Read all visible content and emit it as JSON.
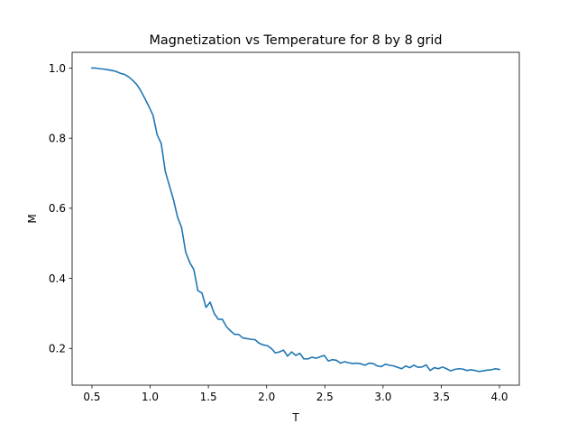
{
  "chart_data": {
    "type": "line",
    "title": "Magnetization vs Temperature for 8 by 8 grid",
    "xlabel": "T",
    "ylabel": "M",
    "xlim": [
      0.33,
      4.17
    ],
    "ylim": [
      0.095,
      1.045
    ],
    "grid": false,
    "xticks": [
      0.5,
      1.0,
      1.5,
      2.0,
      2.5,
      3.0,
      3.5,
      4.0
    ],
    "xtick_labels": [
      "0.5",
      "1.0",
      "1.5",
      "2.0",
      "2.5",
      "3.0",
      "3.5",
      "4.0"
    ],
    "yticks": [
      0.2,
      0.4,
      0.6,
      0.8,
      1.0
    ],
    "ytick_labels": [
      "0.2",
      "0.4",
      "0.6",
      "0.8",
      "1.0"
    ],
    "series": [
      {
        "color": "#1f77b4",
        "x": [
          0.5,
          0.535,
          0.57,
          0.605,
          0.64,
          0.675,
          0.71,
          0.745,
          0.78,
          0.815,
          0.85,
          0.885,
          0.92,
          0.955,
          0.99,
          1.025,
          1.06,
          1.095,
          1.13,
          1.165,
          1.2,
          1.235,
          1.27,
          1.305,
          1.34,
          1.375,
          1.41,
          1.445,
          1.48,
          1.515,
          1.55,
          1.585,
          1.62,
          1.655,
          1.69,
          1.725,
          1.76,
          1.795,
          1.83,
          1.865,
          1.9,
          1.935,
          1.97,
          2.005,
          2.04,
          2.075,
          2.11,
          2.145,
          2.18,
          2.215,
          2.25,
          2.285,
          2.32,
          2.355,
          2.39,
          2.425,
          2.46,
          2.495,
          2.53,
          2.565,
          2.6,
          2.635,
          2.67,
          2.705,
          2.74,
          2.775,
          2.81,
          2.845,
          2.88,
          2.915,
          2.95,
          2.985,
          3.02,
          3.055,
          3.09,
          3.125,
          3.16,
          3.195,
          3.23,
          3.265,
          3.3,
          3.335,
          3.37,
          3.405,
          3.44,
          3.475,
          3.51,
          3.545,
          3.58,
          3.615,
          3.65,
          3.685,
          3.72,
          3.755,
          3.79,
          3.825,
          3.86,
          3.895,
          3.93,
          3.965,
          4.0
        ],
        "y": [
          1.0,
          1.0,
          0.998,
          0.997,
          0.995,
          0.993,
          0.99,
          0.985,
          0.982,
          0.975,
          0.965,
          0.953,
          0.935,
          0.913,
          0.89,
          0.865,
          0.81,
          0.785,
          0.705,
          0.665,
          0.625,
          0.575,
          0.545,
          0.475,
          0.445,
          0.425,
          0.365,
          0.358,
          0.317,
          0.332,
          0.3,
          0.283,
          0.283,
          0.262,
          0.25,
          0.24,
          0.24,
          0.23,
          0.228,
          0.226,
          0.225,
          0.215,
          0.21,
          0.208,
          0.2,
          0.187,
          0.19,
          0.195,
          0.178,
          0.19,
          0.18,
          0.186,
          0.17,
          0.17,
          0.175,
          0.172,
          0.176,
          0.18,
          0.164,
          0.168,
          0.166,
          0.158,
          0.162,
          0.159,
          0.157,
          0.158,
          0.156,
          0.152,
          0.158,
          0.157,
          0.15,
          0.148,
          0.155,
          0.152,
          0.15,
          0.146,
          0.142,
          0.15,
          0.145,
          0.152,
          0.146,
          0.147,
          0.153,
          0.137,
          0.145,
          0.142,
          0.147,
          0.142,
          0.136,
          0.14,
          0.142,
          0.141,
          0.137,
          0.139,
          0.137,
          0.134,
          0.136,
          0.138,
          0.139,
          0.142,
          0.14
        ]
      }
    ]
  }
}
